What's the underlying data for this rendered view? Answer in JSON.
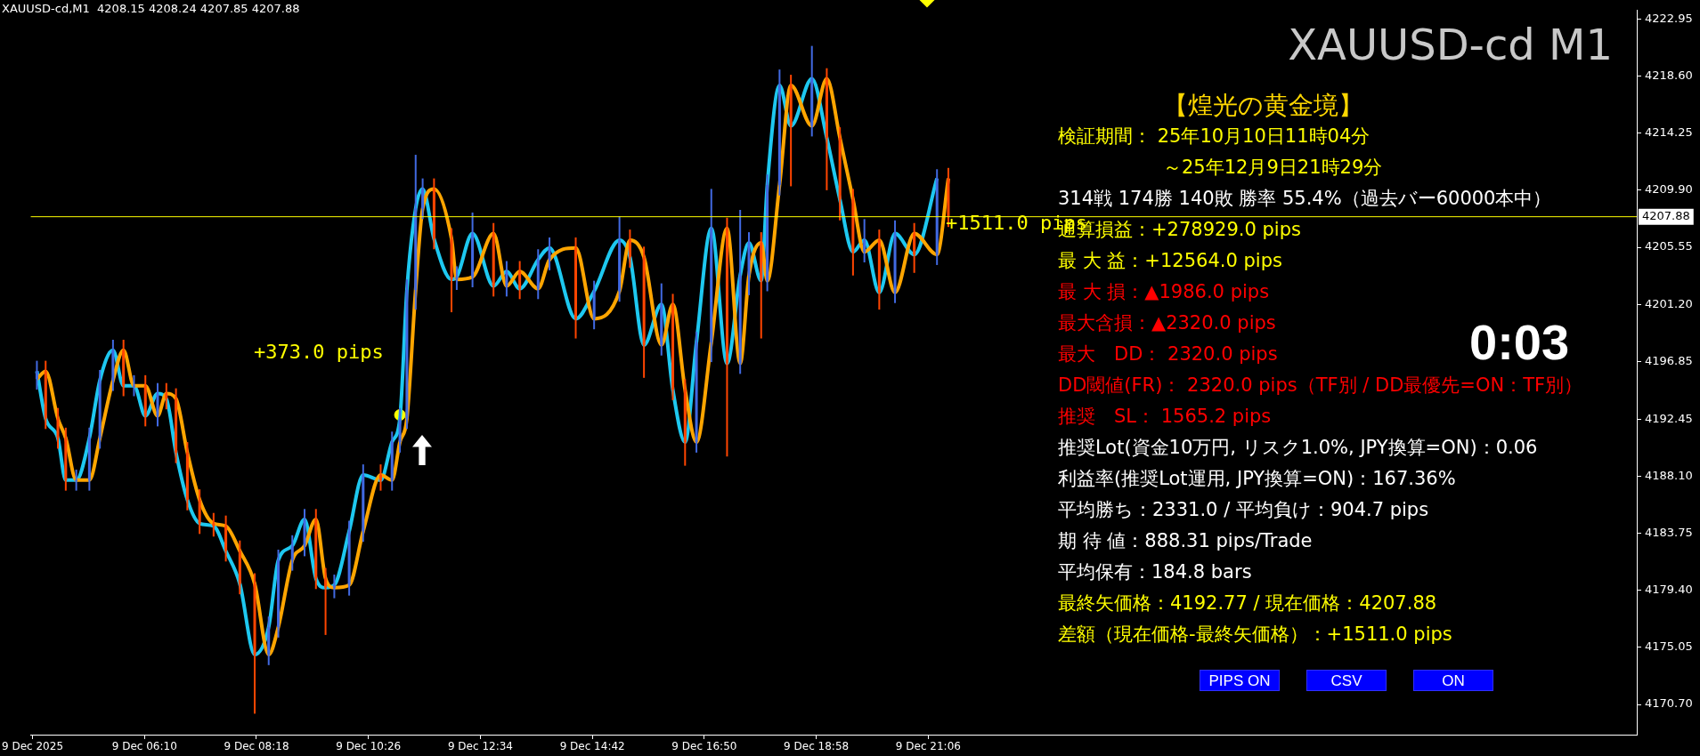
{
  "chart_data": {
    "type": "candlestick",
    "title": "XAUUSD-cd M1",
    "x": [
      "2025-12-09T04:07",
      "2025-12-09T04:17",
      "2025-12-09T04:31",
      "2025-12-09T04:40",
      "2025-12-09T04:52",
      "2025-12-09T05:07",
      "2025-12-09T05:19",
      "2025-12-09T05:34",
      "2025-12-09T05:46",
      "2025-12-09T05:58",
      "2025-12-09T06:11",
      "2025-12-09T06:25",
      "2025-12-09T06:35",
      "2025-12-09T06:46",
      "2025-12-09T06:59",
      "2025-12-09T07:13",
      "2025-12-09T07:29",
      "2025-12-09T07:43",
      "2025-12-09T07:59",
      "2025-12-09T08:16",
      "2025-12-09T08:32",
      "2025-12-09T08:43",
      "2025-12-09T08:59",
      "2025-12-09T09:13",
      "2025-12-09T09:26",
      "2025-12-09T09:37",
      "2025-12-09T09:47",
      "2025-12-09T10:04",
      "2025-12-09T10:20",
      "2025-12-09T10:40",
      "2025-12-09T10:53",
      "2025-12-09T11:02",
      "2025-12-09T11:10",
      "2025-12-09T11:20",
      "2025-12-09T11:28",
      "2025-12-09T11:41",
      "2025-12-09T12:01",
      "2025-12-09T12:07",
      "2025-12-09T12:25",
      "2025-12-09T12:49",
      "2025-12-09T13:04",
      "2025-12-09T13:19",
      "2025-12-09T13:40",
      "2025-12-09T13:53",
      "2025-12-09T14:23",
      "2025-12-09T14:44",
      "2025-12-09T15:13",
      "2025-12-09T15:25",
      "2025-12-09T15:41",
      "2025-12-09T16:01",
      "2025-12-09T16:14",
      "2025-12-09T16:28",
      "2025-12-09T16:41",
      "2025-12-09T16:58",
      "2025-12-09T17:16",
      "2025-12-09T17:31",
      "2025-12-09T17:41",
      "2025-12-09T17:55",
      "2025-12-09T18:02",
      "2025-12-09T18:16",
      "2025-12-09T18:29",
      "2025-12-09T18:53",
      "2025-12-09T19:10",
      "2025-12-09T19:25",
      "2025-12-09T19:40",
      "2025-12-09T19:53",
      "2025-12-09T20:10",
      "2025-12-09T20:28",
      "2025-12-09T20:50",
      "2025-12-09T21:16",
      "2025-12-09T21:29"
    ],
    "ohlc": [
      [
        4195.5,
        4196.9,
        4194.7,
        4196.1
      ],
      [
        4196.1,
        4196.9,
        4191.7,
        4192.5
      ],
      [
        4192.5,
        4193.3,
        4190.2,
        4191.0
      ],
      [
        4191.0,
        4191.8,
        4187.0,
        4187.8
      ],
      [
        4187.8,
        4188.6,
        4187.0,
        4187.8
      ],
      [
        4187.8,
        4191.8,
        4187.0,
        4191.0
      ],
      [
        4191.0,
        4196.2,
        4190.2,
        4195.4
      ],
      [
        4195.4,
        4198.5,
        4194.6,
        4197.7
      ],
      [
        4197.7,
        4198.5,
        4194.2,
        4195.0
      ],
      [
        4195.0,
        4195.8,
        4194.2,
        4195.0
      ],
      [
        4195.0,
        4195.8,
        4191.9,
        4192.7
      ],
      [
        4192.7,
        4195.2,
        4191.9,
        4194.4
      ],
      [
        4194.4,
        4195.2,
        4193.2,
        4194.0
      ],
      [
        4194.0,
        4194.8,
        4189.1,
        4189.9
      ],
      [
        4189.9,
        4190.7,
        4185.5,
        4186.3
      ],
      [
        4186.3,
        4187.1,
        4183.7,
        4184.5
      ],
      [
        4184.5,
        4185.3,
        4183.5,
        4184.3
      ],
      [
        4184.3,
        4185.1,
        4181.6,
        4182.4
      ],
      [
        4182.4,
        4183.2,
        4179.1,
        4179.9
      ],
      [
        4179.9,
        4180.7,
        4170.0,
        4174.5
      ],
      [
        4174.5,
        4177.4,
        4173.7,
        4176.6
      ],
      [
        4176.6,
        4182.5,
        4175.8,
        4181.7
      ],
      [
        4181.7,
        4183.6,
        4180.9,
        4182.8
      ],
      [
        4182.8,
        4185.6,
        4182.0,
        4184.8
      ],
      [
        4184.8,
        4185.6,
        4179.5,
        4180.3
      ],
      [
        4180.3,
        4181.1,
        4176.0,
        4179.6
      ],
      [
        4179.6,
        4180.6,
        4178.8,
        4179.8
      ],
      [
        4179.8,
        4184.7,
        4179.0,
        4183.9
      ],
      [
        4183.9,
        4189.0,
        4183.1,
        4188.2
      ],
      [
        4188.2,
        4189.0,
        4187.0,
        4187.8
      ],
      [
        4187.8,
        4191.5,
        4187.0,
        4190.7
      ],
      [
        4190.7,
        4193.3,
        4189.9,
        4192.5
      ],
      [
        4192.5,
        4203.1,
        4191.7,
        4202.3
      ],
      [
        4202.3,
        4212.6,
        4200.8,
        4208.5
      ],
      [
        4208.5,
        4210.8,
        4207.7,
        4210.0
      ],
      [
        4210.0,
        4210.8,
        4205.4,
        4206.2
      ],
      [
        4206.2,
        4207.0,
        4200.6,
        4203.1
      ],
      [
        4203.1,
        4204.1,
        4202.3,
        4203.3
      ],
      [
        4203.3,
        4208.2,
        4202.5,
        4206.6
      ],
      [
        4206.6,
        4207.4,
        4201.8,
        4202.6
      ],
      [
        4202.6,
        4204.5,
        4201.8,
        4203.7
      ],
      [
        4203.7,
        4204.5,
        4201.6,
        4202.4
      ],
      [
        4202.4,
        4205.4,
        4201.6,
        4204.6
      ],
      [
        4204.6,
        4206.3,
        4203.8,
        4205.5
      ],
      [
        4205.5,
        4206.3,
        4198.6,
        4200.1
      ],
      [
        4200.1,
        4203.0,
        4199.3,
        4202.2
      ],
      [
        4202.2,
        4207.9,
        4201.4,
        4206.1
      ],
      [
        4206.1,
        4206.9,
        4204.0,
        4204.8
      ],
      [
        4204.8,
        4205.6,
        4195.6,
        4198.1
      ],
      [
        4198.1,
        4202.8,
        4197.3,
        4201.2
      ],
      [
        4201.2,
        4202.0,
        4193.9,
        4194.7
      ],
      [
        4194.7,
        4195.5,
        4188.9,
        4190.7
      ],
      [
        4190.7,
        4199.1,
        4189.9,
        4198.3
      ],
      [
        4198.3,
        4210.0,
        4196.8,
        4207.0
      ],
      [
        4207.0,
        4207.8,
        4189.6,
        4196.7
      ],
      [
        4196.7,
        4208.4,
        4195.9,
        4203.4
      ],
      [
        4203.4,
        4206.7,
        4201.9,
        4205.9
      ],
      [
        4205.9,
        4206.7,
        4198.6,
        4203.0
      ],
      [
        4203.0,
        4211.1,
        4202.2,
        4210.3
      ],
      [
        4210.3,
        4219.1,
        4209.5,
        4217.9
      ],
      [
        4217.9,
        4218.7,
        4210.2,
        4214.8
      ],
      [
        4214.8,
        4220.9,
        4214.0,
        4218.4
      ],
      [
        4218.4,
        4219.2,
        4209.9,
        4213.9
      ],
      [
        4213.9,
        4214.7,
        4207.6,
        4209.2
      ],
      [
        4209.2,
        4210.0,
        4203.4,
        4205.2
      ],
      [
        4205.2,
        4207.7,
        4204.4,
        4206.1
      ],
      [
        4206.1,
        4206.9,
        4200.8,
        4202.1
      ],
      [
        4202.1,
        4207.6,
        4201.3,
        4206.6
      ],
      [
        4206.6,
        4207.4,
        4203.6,
        4205.0
      ],
      [
        4205.0,
        4211.5,
        4204.2,
        4210.8
      ],
      [
        4210.8,
        4211.6,
        4207.1,
        4207.88
      ]
    ],
    "series": [
      {
        "type": "line",
        "color": "#ffa500",
        "values": [
          4195.5,
          4196.1,
          4192.5,
          4191.0,
          4187.8,
          4187.8,
          4191.0,
          4195.4,
          4197.7,
          4195.0,
          4195.0,
          4192.7,
          4194.4,
          4194.0,
          4189.9,
          4186.3,
          4184.5,
          4184.3,
          4182.4,
          4179.9,
          4174.5,
          4176.6,
          4181.7,
          4182.8,
          4184.8,
          4180.3,
          4179.6,
          4179.8,
          4183.9,
          4188.2,
          4187.8,
          4190.7,
          4192.5,
          4202.3,
          4208.5,
          4210.0,
          4206.2,
          4203.1,
          4203.3,
          4206.6,
          4202.6,
          4203.7,
          4202.4,
          4204.6,
          4205.5,
          4200.1,
          4202.2,
          4206.1,
          4204.8,
          4198.1,
          4201.2,
          4194.7,
          4190.7,
          4198.3,
          4207.0,
          4196.7,
          4203.4,
          4205.9,
          4203.0,
          4210.3,
          4217.9,
          4214.8,
          4218.4,
          4213.9,
          4209.2,
          4205.2,
          4206.1,
          4202.1,
          4206.6,
          4205.0,
          4210.8
        ]
      },
      {
        "type": "line",
        "color": "#1ec8f0",
        "values": [
          4196.1,
          4192.5,
          4191.0,
          4187.8,
          4187.8,
          4191.0,
          4195.4,
          4197.7,
          4195.0,
          4195.0,
          4192.7,
          4194.4,
          4194.0,
          4189.9,
          4186.3,
          4184.5,
          4184.3,
          4182.4,
          4179.9,
          4174.5,
          4176.6,
          4181.7,
          4182.8,
          4184.8,
          4180.3,
          4179.6,
          4179.8,
          4183.9,
          4188.2,
          4187.8,
          4190.7,
          4192.5,
          4202.3,
          4208.5,
          4210.0,
          4206.2,
          4203.1,
          4203.3,
          4206.6,
          4202.6,
          4203.7,
          4202.4,
          4204.6,
          4205.5,
          4200.1,
          4202.2,
          4206.1,
          4204.8,
          4198.1,
          4201.2,
          4194.7,
          4190.7,
          4198.3,
          4207.0,
          4196.7,
          4203.4,
          4205.9,
          4203.0,
          4210.3,
          4217.9,
          4214.8,
          4218.4,
          4213.9,
          4209.2,
          4205.2,
          4206.1,
          4202.1,
          4206.6,
          4205.0,
          4210.8,
          null
        ]
      },
      {
        "type": "scatter",
        "color": "#ffff00",
        "marker": "circle",
        "x": [
          "2025-12-09T11:02"
        ],
        "values": [
          4192.77
        ]
      }
    ],
    "xlim": [
      "2025-12-09T04:00",
      "2025-12-10T10:36"
    ],
    "xticks": [
      {
        "value": "2025-12-09T04:02",
        "label": "9 Dec 2025"
      },
      {
        "value": "2025-12-09T06:10",
        "label": "9 Dec 06:10"
      },
      {
        "value": "2025-12-09T08:18",
        "label": "9 Dec 08:18"
      },
      {
        "value": "2025-12-09T10:26",
        "label": "9 Dec 10:26"
      },
      {
        "value": "2025-12-09T12:34",
        "label": "9 Dec 12:34"
      },
      {
        "value": "2025-12-09T14:42",
        "label": "9 Dec 14:42"
      },
      {
        "value": "2025-12-09T16:50",
        "label": "9 Dec 16:50"
      },
      {
        "value": "2025-12-09T18:58",
        "label": "9 Dec 18:58"
      },
      {
        "value": "2025-12-09T21:06",
        "label": "9 Dec 21:06"
      }
    ],
    "ylim": [
      4168.4,
      4223.6
    ],
    "yticks": [
      {
        "value": 4170.7,
        "label": "4170.70"
      },
      4175.05,
      {
        "value": 4179.4,
        "label": "4179.40"
      },
      4183.75,
      {
        "value": 4188.1,
        "label": "4188.10"
      },
      4192.45,
      {
        "value": 4196.85,
        "label": "4196.85"
      },
      {
        "value": 4201.2,
        "label": "4201.20"
      },
      4205.55,
      {
        "value": 4209.9,
        "label": "4209.90"
      },
      4214.25,
      {
        "value": 4218.6,
        "label": "4218.60"
      },
      4222.95
    ],
    "ref_lines": [
      {
        "axis": "y",
        "value": 4207.88,
        "label": "4207.88",
        "color": "#ffff00"
      }
    ],
    "annotations": [
      "XAUUSD-cd,M1  4208.15 4208.24 4207.85 4207.88",
      "【煌光の黄金境】",
      "検証期間： 25年10月10日11時04分",
      "～25年12月9日21時29分",
      "314戦 174勝 140敗 勝率 55.4%（過去バー60000本中）",
      "通算損益：+278929.0 pips",
      "最 大 益：+12564.0 pips",
      "最 大 損：▲1986.0 pips",
      "最大含損：▲2320.0 pips",
      "最大　DD： 2320.0 pips",
      "DD閾値(FR)： 2320.0 pips（TF別 / DD最優先=ON：TF別）",
      "推奨　SL： 1565.2 pips",
      "推奨Lot(資金10万円, リスク1.0%, JPY換算=ON)：0.06",
      "利益率(推奨Lot運用, JPY換算=ON)：167.36%",
      "平均勝ち：2331.0 / 平均負け：904.7 pips",
      "期 待 値：888.31 pips/Trade",
      "平均保有：184.8 bars",
      "最終矢価格：4192.77 / 現在価格：4207.88",
      "差額（現在価格-最終矢価格）：+1511.0 pips",
      "0:03",
      "PIPS ON",
      "CSV",
      "ON",
      "+373.0 pips",
      "+1511.0 pips"
    ],
    "legend": false,
    "grid": false
  }
}
